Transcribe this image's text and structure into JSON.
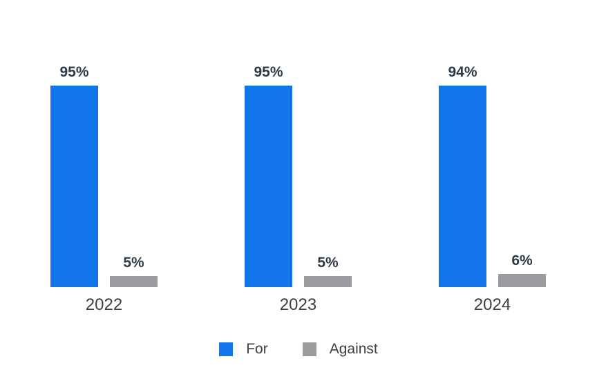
{
  "chart_data": {
    "type": "bar",
    "title": "",
    "xlabel": "",
    "ylabel": "",
    "categories": [
      "2022",
      "2023",
      "2024"
    ],
    "series": [
      {
        "name": "For",
        "color": "#1174EB",
        "values": [
          95,
          95,
          94
        ],
        "data_labels": [
          "95%",
          "95%",
          "94%"
        ]
      },
      {
        "name": "Against",
        "color": "#9B9C9F",
        "values": [
          5,
          5,
          6
        ],
        "data_labels": [
          "5%",
          "5%",
          "6%"
        ]
      }
    ],
    "ylim": [
      0,
      100
    ],
    "unit": "%",
    "grid": false,
    "axes_visible": false,
    "legend_position": "bottom-center",
    "background_color": "#FFFFFF",
    "value_label_color": "#2E3A45",
    "category_label_color": "#3C4043",
    "legend_text_color": "#3C4043"
  }
}
